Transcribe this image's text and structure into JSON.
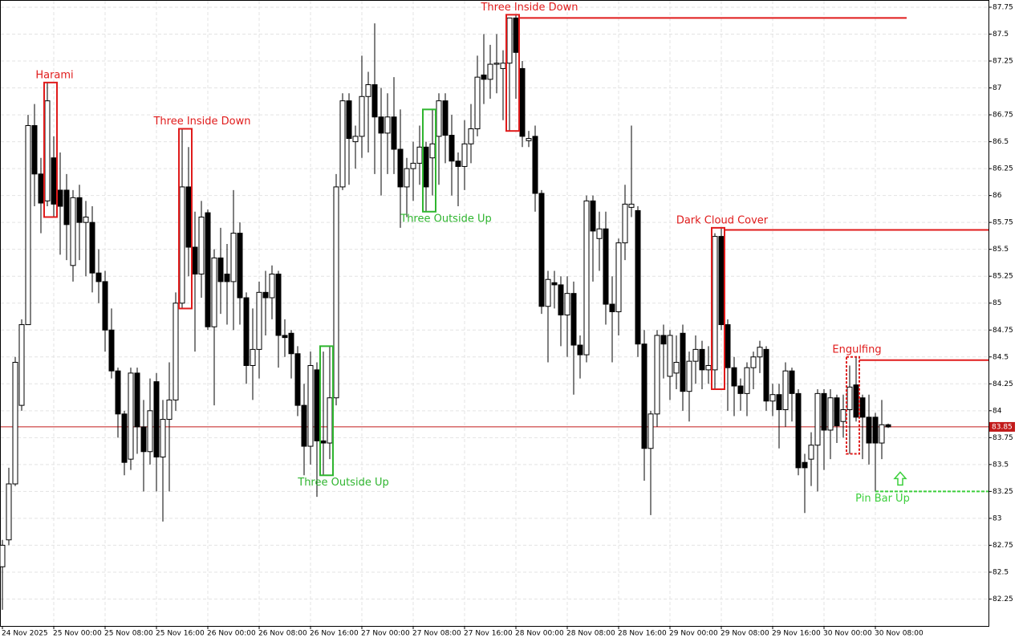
{
  "chart_data": {
    "type": "candlestick",
    "categories": [
      "24 Nov 2025",
      null,
      null,
      null,
      null,
      null,
      null,
      null,
      "25 Nov 00:00",
      null,
      null,
      null,
      null,
      null,
      null,
      null,
      "25 Nov 08:00",
      null,
      null,
      null,
      null,
      null,
      null,
      null,
      "25 Nov 16:00",
      null,
      null,
      null,
      null,
      null,
      null,
      null,
      "26 Nov 00:00",
      null,
      null,
      null,
      null,
      null,
      null,
      null,
      "26 Nov 08:00",
      null,
      null,
      null,
      null,
      null,
      null,
      null,
      "26 Nov 16:00",
      null,
      null,
      null,
      null,
      null,
      null,
      null,
      "27 Nov 00:00",
      null,
      null,
      null,
      null,
      null,
      null,
      null,
      "27 Nov 08:00",
      null,
      null,
      null,
      null,
      null,
      null,
      null,
      "27 Nov 16:00",
      null,
      null,
      null,
      null,
      null,
      null,
      null,
      "28 Nov 00:00",
      null,
      null,
      null,
      null,
      null,
      null,
      null,
      "28 Nov 08:00",
      null,
      null,
      null,
      null,
      null,
      null,
      null,
      "28 Nov 16:00",
      null,
      null,
      null,
      null,
      null,
      null,
      null,
      "29 Nov 00:00",
      null,
      null,
      null,
      null,
      null,
      null,
      null,
      "29 Nov 08:00",
      null,
      null,
      null,
      null,
      null,
      null,
      null,
      "29 Nov 16:00",
      null,
      null,
      null,
      null,
      null,
      null,
      null,
      "30 Nov 00:00",
      null,
      null,
      null,
      null,
      null,
      null,
      null,
      "30 Nov 08:00",
      null,
      null
    ],
    "open": [
      82.55,
      82.8,
      83.32,
      84.05,
      84.8,
      86.65,
      86.2,
      85.95,
      86.35,
      86.05,
      86.05,
      85.35,
      85.98,
      85.75,
      85.75,
      85.28,
      85.2,
      84.75,
      84.37,
      83.97,
      83.55,
      84.35,
      83.85,
      83.62,
      84.27,
      83.57,
      83.92,
      84.1,
      85.0,
      86.08,
      85.52,
      85.27,
      85.84,
      84.78,
      85.42,
      85.27,
      85.2,
      85.65,
      85.05,
      84.42,
      84.57,
      85.1,
      85.05,
      85.27,
      84.7,
      84.72,
      84.53,
      84.05,
      83.67,
      84.38,
      83.72,
      83.7,
      84.12,
      86.08,
      86.88,
      86.5,
      86.55,
      86.92,
      87.03,
      86.73,
      86.58,
      86.73,
      86.43,
      86.08,
      86.25,
      86.3,
      86.45,
      86.35,
      86.55,
      86.88,
      86.56,
      86.32,
      86.27,
      86.48,
      86.62,
      87.12,
      87.08,
      87.22,
      87.18,
      87.23,
      87.65,
      87.18,
      86.51,
      86.55,
      86.02,
      84.97,
      85.19,
      85.17,
      84.89,
      85.09,
      84.61,
      84.52,
      85.95,
      85.6,
      85.69,
      84.99,
      84.92,
      85.56,
      85.89,
      85.86,
      84.62,
      83.65,
      83.97,
      84.7,
      84.32,
      84.35,
      84.72,
      84.18,
      84.46,
      84.57,
      84.38,
      84.38,
      85.62,
      84.8,
      84.4,
      84.23,
      84.16,
      84.4,
      84.5,
      84.57,
      84.09,
      84.15,
      84.01,
      84.37,
      84.16,
      83.52,
      83.55,
      83.68,
      84.16,
      83.82,
      84.12,
      83.9,
      84.01,
      84.24,
      84.12,
      83.94,
      83.94,
      83.7,
      83.87
    ],
    "high": [
      82.8,
      83.47,
      84.5,
      84.85,
      86.75,
      86.85,
      86.35,
      87.05,
      86.55,
      86.4,
      86.2,
      86.05,
      86.1,
      85.95,
      85.9,
      85.5,
      85.3,
      84.95,
      84.4,
      84.0,
      84.4,
      84.4,
      84.1,
      84.3,
      84.35,
      84.1,
      84.45,
      85.1,
      86.62,
      86.45,
      85.85,
      85.95,
      85.87,
      85.5,
      85.7,
      85.55,
      86.05,
      85.75,
      85.1,
      84.95,
      85.2,
      85.3,
      85.35,
      85.3,
      84.85,
      84.75,
      84.6,
      84.25,
      84.55,
      84.45,
      84.55,
      84.6,
      86.2,
      86.95,
      86.95,
      86.65,
      87.3,
      87.15,
      87.6,
      87.0,
      86.95,
      87.1,
      86.8,
      86.35,
      86.5,
      86.65,
      86.5,
      86.8,
      86.95,
      86.95,
      86.75,
      86.4,
      86.7,
      86.85,
      87.3,
      87.5,
      87.4,
      87.5,
      87.35,
      87.65,
      87.68,
      87.25,
      86.6,
      86.65,
      86.05,
      85.3,
      85.3,
      85.25,
      85.25,
      85.2,
      84.7,
      86.0,
      86.0,
      85.85,
      85.85,
      85.25,
      85.6,
      86.1,
      86.65,
      85.9,
      84.75,
      84.0,
      84.75,
      84.8,
      84.75,
      84.7,
      84.8,
      84.55,
      84.7,
      84.65,
      84.6,
      85.65,
      85.7,
      84.85,
      84.5,
      84.3,
      84.45,
      84.55,
      84.65,
      84.6,
      84.25,
      84.25,
      84.45,
      84.4,
      84.2,
      83.6,
      83.8,
      84.2,
      84.2,
      84.2,
      84.15,
      84.15,
      84.42,
      84.5,
      84.15,
      84.15,
      83.98,
      84.1,
      83.88
    ],
    "low": [
      82.15,
      82.75,
      83.3,
      84.0,
      84.8,
      85.9,
      85.65,
      85.9,
      85.8,
      85.45,
      85.4,
      85.2,
      85.4,
      85.25,
      85.1,
      85.0,
      84.55,
      84.3,
      83.75,
      83.4,
      83.45,
      83.6,
      83.25,
      83.5,
      83.25,
      82.97,
      83.25,
      84.0,
      84.95,
      85.25,
      84.55,
      85.05,
      84.75,
      84.05,
      84.9,
      84.8,
      84.75,
      84.8,
      84.25,
      84.1,
      84.3,
      84.7,
      84.85,
      84.4,
      84.5,
      84.3,
      83.95,
      83.4,
      83.5,
      83.2,
      83.4,
      83.55,
      84.05,
      86.05,
      86.1,
      86.25,
      86.35,
      86.4,
      86.2,
      86.0,
      86.2,
      86.2,
      85.7,
      85.8,
      85.95,
      86.1,
      85.85,
      86.0,
      86.1,
      86.3,
      86.0,
      85.9,
      86.05,
      86.3,
      86.55,
      86.85,
      86.9,
      86.95,
      86.7,
      86.6,
      86.9,
      86.45,
      86.45,
      85.85,
      84.9,
      84.45,
      84.95,
      84.6,
      84.5,
      84.15,
      84.3,
      84.45,
      85.2,
      85.3,
      84.8,
      84.45,
      84.7,
      85.4,
      85.8,
      84.5,
      83.35,
      83.03,
      83.85,
      84.3,
      84.1,
      84.2,
      84.0,
      83.9,
      84.25,
      84.2,
      84.25,
      84.2,
      84.75,
      84.0,
      83.95,
      84.0,
      83.95,
      84.2,
      84.35,
      84.0,
      83.95,
      83.65,
      83.85,
      83.9,
      83.4,
      83.05,
      83.3,
      83.25,
      83.45,
      83.55,
      83.7,
      83.75,
      83.6,
      83.9,
      83.55,
      83.5,
      83.25,
      83.55,
      83.84
    ],
    "close": [
      82.75,
      83.32,
      84.45,
      84.8,
      86.65,
      86.2,
      85.93,
      86.88,
      85.92,
      85.9,
      85.73,
      85.98,
      85.75,
      85.8,
      85.28,
      85.2,
      84.75,
      84.37,
      83.97,
      83.52,
      84.35,
      83.85,
      83.62,
      84.0,
      83.57,
      83.92,
      84.1,
      85.0,
      86.08,
      85.52,
      85.27,
      85.8,
      84.78,
      85.42,
      85.2,
      85.2,
      85.65,
      85.05,
      84.42,
      84.57,
      85.1,
      85.05,
      85.27,
      84.7,
      84.68,
      84.53,
      84.05,
      83.67,
      84.42,
      83.72,
      83.7,
      84.12,
      86.08,
      86.88,
      86.53,
      86.55,
      86.92,
      87.03,
      86.73,
      86.58,
      86.73,
      86.43,
      86.08,
      86.25,
      86.3,
      86.45,
      86.08,
      86.48,
      86.88,
      86.56,
      86.32,
      86.27,
      86.48,
      86.62,
      87.1,
      87.08,
      87.22,
      87.23,
      87.23,
      87.65,
      87.33,
      86.55,
      86.53,
      86.02,
      84.97,
      85.22,
      85.17,
      84.89,
      85.09,
      84.61,
      84.52,
      85.95,
      85.67,
      85.69,
      84.99,
      84.92,
      85.56,
      85.92,
      85.92,
      84.62,
      83.65,
      83.97,
      84.7,
      84.62,
      84.7,
      84.45,
      84.18,
      84.46,
      84.57,
      84.38,
      84.42,
      85.62,
      84.8,
      84.4,
      84.23,
      84.16,
      84.4,
      84.5,
      84.59,
      84.09,
      84.15,
      84.01,
      84.37,
      84.16,
      83.47,
      83.47,
      83.68,
      84.16,
      83.82,
      84.12,
      83.86,
      84.01,
      84.22,
      83.94,
      83.94,
      83.7,
      83.7,
      83.87,
      83.85
    ],
    "up_color": "#ffffff",
    "down_color": "#000000",
    "ylim": [
      82.0,
      87.817
    ],
    "yticks": [
      82.25,
      82.5,
      82.75,
      83,
      83.25,
      83.5,
      83.75,
      84,
      84.25,
      84.5,
      84.75,
      85,
      85.25,
      85.5,
      85.75,
      86,
      86.25,
      86.5,
      86.75,
      87,
      87.25,
      87.5,
      87.75
    ],
    "grid": true,
    "current_price": 83.85,
    "current_price_color": "#c21a1a",
    "patterns": [
      {
        "label": "Harami",
        "color": "#e01b1b"
      },
      {
        "label": "Three Inside Down",
        "color": "#e01b1b"
      },
      {
        "label": "Three Outside Up",
        "color": "#2fb52f"
      },
      {
        "label": "Three Outside Up",
        "color": "#2fb52f"
      },
      {
        "label": "Three Inside Down",
        "color": "#e01b1b",
        "level": 87.65
      },
      {
        "label": "Dark Cloud Cover",
        "color": "#e01b1b",
        "level": 85.68
      },
      {
        "label": "Engulfing",
        "color": "#e01b1b",
        "level": 84.47
      },
      {
        "label": "Pin Bar Up",
        "color": "#3ccf3c",
        "level": 83.25
      }
    ]
  }
}
